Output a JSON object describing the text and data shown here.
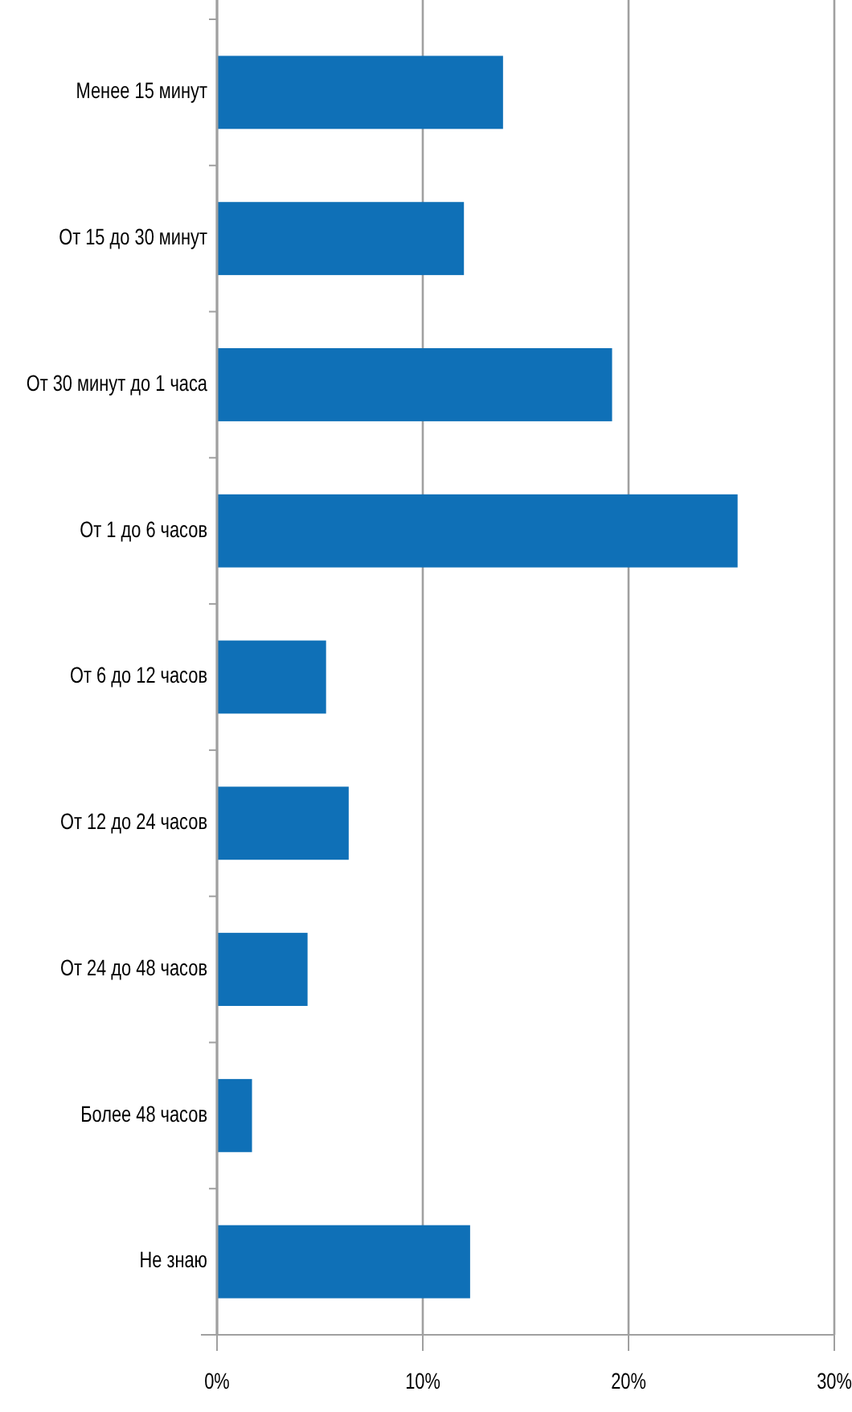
{
  "chart_data": {
    "type": "bar",
    "orientation": "horizontal",
    "categories": [
      "Менее 15 минут",
      "От 15 до 30 минут",
      "От 30 минут до 1 часа",
      "От 1 до 6 часов",
      "От 6 до 12 часов",
      "От 12 до 24 часов",
      "От 24 до 48 часов",
      "Более 48 часов",
      "Не знаю"
    ],
    "values": [
      13.9,
      12.0,
      19.2,
      25.3,
      5.3,
      6.4,
      4.4,
      1.7,
      12.3
    ],
    "color": "#0f70b7",
    "xlim": [
      0,
      30
    ],
    "xticks": [
      {
        "value": 0,
        "label": "0%"
      },
      {
        "value": 10,
        "label": "10%"
      },
      {
        "value": 20,
        "label": "20%"
      },
      {
        "value": 30,
        "label": "30%"
      }
    ],
    "grid": "x"
  }
}
